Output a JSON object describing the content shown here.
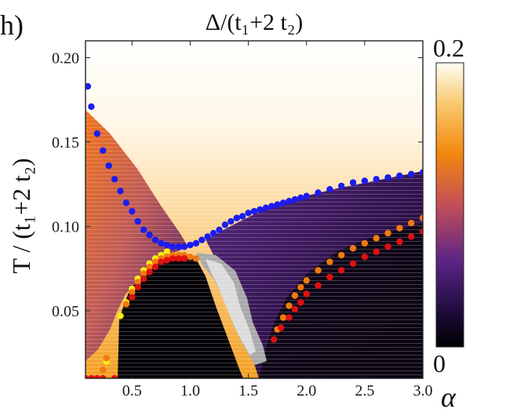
{
  "panel_label": "h)",
  "chart_data": {
    "type": "heatmap",
    "title": "Δ/(t₁+2 t₂)",
    "xlabel": "α",
    "ylabel": "T / (t₁+2 t₂)",
    "xlim": [
      0.1,
      3.0
    ],
    "ylim": [
      0.01,
      0.21
    ],
    "x_ticks": [
      "0.5",
      "1.0",
      "1.5",
      "2.0",
      "2.5",
      "3.0"
    ],
    "x_tick_values": [
      0.5,
      1.0,
      1.5,
      2.0,
      2.5,
      3.0
    ],
    "y_ticks": [
      "0.05",
      "0.10",
      "0.15",
      "0.20"
    ],
    "y_tick_values": [
      0.05,
      0.1,
      0.15,
      0.2
    ],
    "colorbar": {
      "min": 0,
      "max": 0.2,
      "min_label": "0",
      "max_label": "0.2"
    },
    "series": [
      {
        "color": "#1c1cf0",
        "points": [
          [
            0.12,
            0.183
          ],
          [
            0.15,
            0.171
          ],
          [
            0.2,
            0.155
          ],
          [
            0.25,
            0.145
          ],
          [
            0.3,
            0.136
          ],
          [
            0.35,
            0.128
          ],
          [
            0.4,
            0.121
          ],
          [
            0.45,
            0.114
          ],
          [
            0.5,
            0.109
          ],
          [
            0.55,
            0.103
          ],
          [
            0.6,
            0.098
          ],
          [
            0.65,
            0.095
          ],
          [
            0.7,
            0.092
          ],
          [
            0.75,
            0.09
          ],
          [
            0.8,
            0.089
          ],
          [
            0.85,
            0.088
          ],
          [
            0.9,
            0.088
          ],
          [
            0.95,
            0.088
          ],
          [
            1.0,
            0.089
          ],
          [
            1.05,
            0.09
          ],
          [
            1.1,
            0.092
          ],
          [
            1.15,
            0.094
          ],
          [
            1.2,
            0.096
          ],
          [
            1.25,
            0.098
          ],
          [
            1.3,
            0.101
          ],
          [
            1.35,
            0.103
          ],
          [
            1.4,
            0.105
          ],
          [
            1.45,
            0.106
          ],
          [
            1.5,
            0.108
          ],
          [
            1.55,
            0.109
          ],
          [
            1.6,
            0.11
          ],
          [
            1.65,
            0.111
          ],
          [
            1.7,
            0.112
          ],
          [
            1.75,
            0.113
          ],
          [
            1.8,
            0.114
          ],
          [
            1.85,
            0.115
          ],
          [
            1.9,
            0.116
          ],
          [
            1.95,
            0.117
          ],
          [
            2.0,
            0.118
          ],
          [
            2.1,
            0.12
          ],
          [
            2.2,
            0.122
          ],
          [
            2.3,
            0.124
          ],
          [
            2.4,
            0.126
          ],
          [
            2.5,
            0.127
          ],
          [
            2.6,
            0.128
          ],
          [
            2.7,
            0.129
          ],
          [
            2.8,
            0.13
          ],
          [
            2.9,
            0.131
          ],
          [
            3.0,
            0.132
          ]
        ]
      },
      {
        "color": "#f5f012",
        "points": [
          [
            0.28,
            0.02
          ],
          [
            0.4,
            0.047
          ],
          [
            0.45,
            0.055
          ],
          [
            0.5,
            0.063
          ],
          [
            0.55,
            0.069
          ],
          [
            0.6,
            0.074
          ],
          [
            0.65,
            0.078
          ],
          [
            0.7,
            0.081
          ],
          [
            0.75,
            0.083
          ],
          [
            0.8,
            0.085
          ]
        ]
      },
      {
        "color": "#f07a10",
        "points": [
          [
            0.25,
            0.015
          ],
          [
            0.28,
            0.022
          ],
          [
            0.45,
            0.054
          ],
          [
            0.5,
            0.061
          ],
          [
            0.55,
            0.067
          ],
          [
            0.6,
            0.072
          ],
          [
            0.65,
            0.076
          ],
          [
            0.7,
            0.079
          ],
          [
            0.75,
            0.081
          ],
          [
            0.8,
            0.082
          ],
          [
            0.85,
            0.083
          ],
          [
            0.9,
            0.083
          ],
          [
            0.95,
            0.083
          ],
          [
            1.0,
            0.082
          ],
          [
            1.05,
            0.081
          ],
          [
            1.75,
            0.039
          ],
          [
            1.8,
            0.046
          ],
          [
            1.85,
            0.053
          ],
          [
            1.9,
            0.059
          ],
          [
            1.95,
            0.064
          ],
          [
            2.0,
            0.068
          ],
          [
            2.1,
            0.074
          ],
          [
            2.2,
            0.079
          ],
          [
            2.3,
            0.083
          ],
          [
            2.4,
            0.087
          ],
          [
            2.5,
            0.09
          ],
          [
            2.6,
            0.093
          ],
          [
            2.7,
            0.096
          ],
          [
            2.8,
            0.099
          ],
          [
            2.9,
            0.102
          ],
          [
            3.0,
            0.105
          ]
        ]
      },
      {
        "color": "#e01010",
        "points": [
          [
            0.1,
            0.01
          ],
          [
            0.15,
            0.01
          ],
          [
            0.2,
            0.01
          ],
          [
            0.25,
            0.01
          ],
          [
            0.35,
            0.01
          ],
          [
            0.5,
            0.058
          ],
          [
            0.55,
            0.064
          ],
          [
            0.6,
            0.069
          ],
          [
            0.65,
            0.073
          ],
          [
            0.7,
            0.076
          ],
          [
            0.75,
            0.079
          ],
          [
            0.8,
            0.08
          ],
          [
            0.85,
            0.081
          ],
          [
            0.9,
            0.081
          ],
          [
            0.95,
            0.081
          ],
          [
            1.72,
            0.033
          ],
          [
            1.78,
            0.04
          ],
          [
            1.85,
            0.046
          ],
          [
            1.9,
            0.051
          ],
          [
            1.95,
            0.055
          ],
          [
            2.0,
            0.06
          ],
          [
            2.1,
            0.065
          ],
          [
            2.2,
            0.07
          ],
          [
            2.3,
            0.074
          ],
          [
            2.4,
            0.078
          ],
          [
            2.5,
            0.082
          ],
          [
            2.6,
            0.085
          ],
          [
            2.7,
            0.088
          ],
          [
            2.8,
            0.091
          ],
          [
            2.9,
            0.094
          ],
          [
            3.0,
            0.097
          ]
        ]
      }
    ]
  }
}
